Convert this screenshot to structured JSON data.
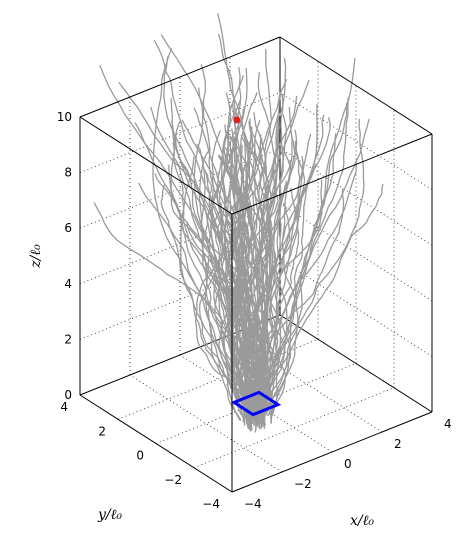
{
  "chart_data": {
    "type": "line3d",
    "title": "",
    "xlabel": "x/ℓ₀",
    "ylabel": "y/ℓ₀",
    "zlabel": "z/ℓ₀",
    "xlim": [
      -4,
      4
    ],
    "ylim": [
      -4,
      4
    ],
    "zlim": [
      0,
      10
    ],
    "x_ticks": [
      -4,
      -2,
      0,
      2,
      4
    ],
    "y_ticks": [
      -4,
      -2,
      0,
      2,
      4
    ],
    "z_ticks": [
      0,
      2,
      4,
      6,
      8,
      10
    ],
    "grid": true,
    "source_square": {
      "color": "#0000ff",
      "z": 0,
      "x_range": [
        -0.5,
        0.5
      ],
      "y_range": [
        -0.5,
        0.5
      ]
    },
    "target_point": {
      "x": 0.6,
      "y": 1.8,
      "z": 9.2,
      "color": "#e02020"
    },
    "trajectory_color": "#9a9a9a",
    "trajectory_count": 120
  }
}
